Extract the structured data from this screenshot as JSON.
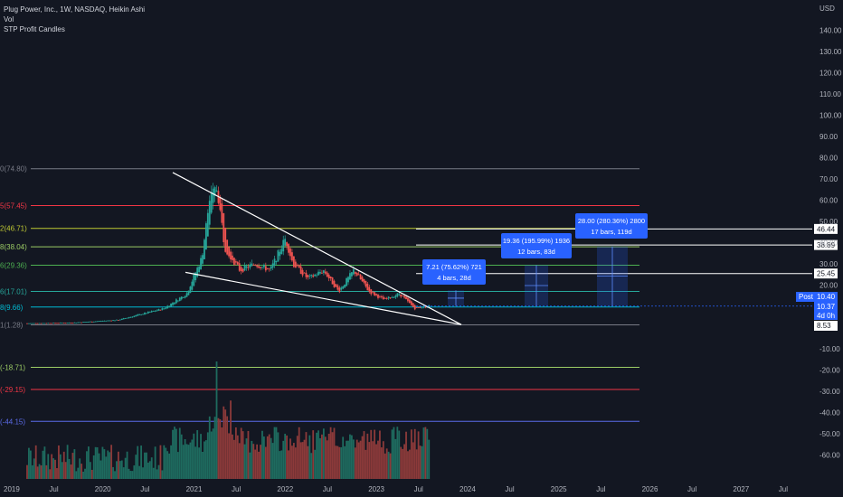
{
  "legend": {
    "title": "Plug Power, Inc., 1W, NASDAQ, Heikin Ashi",
    "vol": "Vol",
    "indicator": "STP Profit Candles"
  },
  "currency_label": "USD",
  "colors": {
    "background": "#131722",
    "up": "#26a69a",
    "down": "#ef5350",
    "accent_blue": "#2962ff",
    "trend_line": "#ffffff"
  },
  "y_axis_ticks": [
    "140.00",
    "130.00",
    "120.00",
    "110.00",
    "100.00",
    "90.00",
    "80.00",
    "70.00",
    "60.00",
    "50.00",
    "40.00",
    "30.00",
    "20.00",
    "10.00",
    "0.00",
    "-10.00",
    "-20.00",
    "-30.00",
    "-40.00",
    "-50.00",
    "-60.00"
  ],
  "x_axis_ticks": [
    "2019",
    "Jul",
    "2020",
    "Jul",
    "2021",
    "Jul",
    "2022",
    "Jul",
    "2023",
    "Jul",
    "2024",
    "Jul",
    "2025",
    "Jul",
    "2026",
    "Jul",
    "2027",
    "Jul"
  ],
  "fib_levels": [
    {
      "label": "0(74.80)",
      "value": 74.8,
      "color": "#787b86"
    },
    {
      "label": "5(57.45)",
      "value": 57.45,
      "color": "#f23645"
    },
    {
      "label": "2(46.71)",
      "value": 46.71,
      "color": "#c0ca33"
    },
    {
      "label": "8(38.04)",
      "value": 38.04,
      "color": "#9ccc65"
    },
    {
      "label": "6(29.36)",
      "value": 29.36,
      "color": "#4caf50"
    },
    {
      "label": "6(17.01)",
      "value": 17.01,
      "color": "#26a69a"
    },
    {
      "label": "8(9.66)",
      "value": 9.66,
      "color": "#00bcd4"
    },
    {
      "label": "1(1.28)",
      "value": 1.28,
      "color": "#787b86"
    },
    {
      "label": "(-18.71)",
      "value": -18.71,
      "color": "#9ccc65"
    },
    {
      "label": "(-29.15)",
      "value": -29.15,
      "color": "#f23645"
    },
    {
      "label": "(-44.15)",
      "value": -44.15,
      "color": "#5b6be8"
    }
  ],
  "target_lines": [
    {
      "value": 46.44,
      "label": "46.44"
    },
    {
      "value": 38.89,
      "label": "38.89"
    },
    {
      "value": 25.45,
      "label": "25.45"
    }
  ],
  "price_tags": [
    {
      "label": "Post",
      "value": "10.40",
      "color": "#2962ff"
    },
    {
      "label": "",
      "value": "10.37",
      "color": "#2962ff"
    },
    {
      "label": "",
      "value": "4d 0h",
      "color": "#2962ff"
    },
    {
      "label": "",
      "value": "8.53",
      "color": "#ffffff"
    }
  ],
  "projection_boxes": [
    {
      "line1": "7.21 (75.62%) 721",
      "line2": "4 bars, 28d"
    },
    {
      "line1": "19.36 (195.99%) 1936",
      "line2": "12 bars, 83d"
    },
    {
      "line1": "28.00 (280.36%) 2800",
      "line2": "17 bars, 119d"
    }
  ],
  "price_series": {
    "description_unit": "USD, weekly Heikin Ashi closes",
    "points": [
      [
        "2019-01",
        2.0
      ],
      [
        "2019-07",
        2.3
      ],
      [
        "2020-01",
        3.6
      ],
      [
        "2020-07",
        9.0
      ],
      [
        "2020-10",
        16.0
      ],
      [
        "2020-12",
        33.0
      ],
      [
        "2021-01",
        60.0
      ],
      [
        "2021-02",
        66.0
      ],
      [
        "2021-03",
        38.0
      ],
      [
        "2021-05",
        27.0
      ],
      [
        "2021-07",
        30.0
      ],
      [
        "2021-09",
        27.0
      ],
      [
        "2021-11",
        42.0
      ],
      [
        "2021-12",
        30.0
      ],
      [
        "2022-02",
        23.0
      ],
      [
        "2022-04",
        27.0
      ],
      [
        "2022-06",
        17.0
      ],
      [
        "2022-08",
        27.0
      ],
      [
        "2022-10",
        17.0
      ],
      [
        "2022-12",
        13.0
      ],
      [
        "2023-02",
        16.0
      ],
      [
        "2023-04",
        9.0
      ],
      [
        "2023-06",
        10.4
      ]
    ]
  }
}
